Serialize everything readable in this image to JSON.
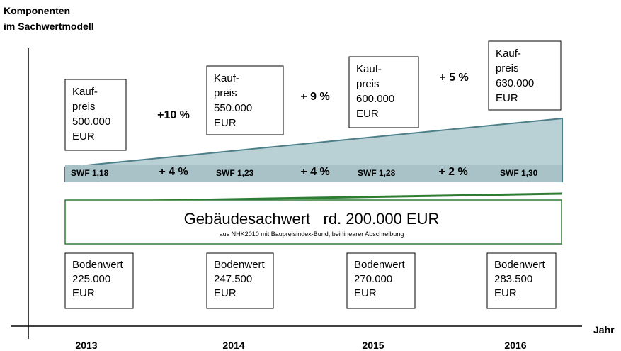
{
  "title": [
    "Komponenten",
    "im Sachwertmodell"
  ],
  "axis_label": "Jahr",
  "years": [
    "2013",
    "2014",
    "2015",
    "2016"
  ],
  "kaufpreis_boxes": [
    {
      "lines": [
        "Kauf-",
        "preis",
        "500.000",
        "EUR"
      ]
    },
    {
      "lines": [
        "Kauf-",
        "preis",
        "550.000",
        "EUR"
      ]
    },
    {
      "lines": [
        "Kauf-",
        "preis",
        "600.000",
        "EUR"
      ]
    },
    {
      "lines": [
        "Kauf-",
        "preis",
        "630.000",
        "EUR"
      ]
    }
  ],
  "kaufpreis_growth": [
    "+10 %",
    "+ 9 %",
    "+ 5 %"
  ],
  "swf_labels": [
    "SWF 1,18",
    "SWF 1,23",
    "SWF 1,28",
    "SWF 1,30"
  ],
  "swf_growth": [
    "+ 4 %",
    "+ 4 %",
    "+ 2 %"
  ],
  "gebaeude": {
    "title": "Gebäudesachwert   rd. 200.000 EUR",
    "subtitle": "aus NHK2010 mit Baupreisindex-Bund, bei linearer Abschreibung"
  },
  "bodenwert_boxes": [
    {
      "lines": [
        "Bodenwert",
        "225.000",
        "EUR"
      ]
    },
    {
      "lines": [
        "Bodenwert",
        "247.500",
        "EUR"
      ]
    },
    {
      "lines": [
        "Bodenwert",
        "270.000",
        "EUR"
      ]
    },
    {
      "lines": [
        "Bodenwert",
        "283.500",
        "EUR"
      ]
    }
  ]
}
